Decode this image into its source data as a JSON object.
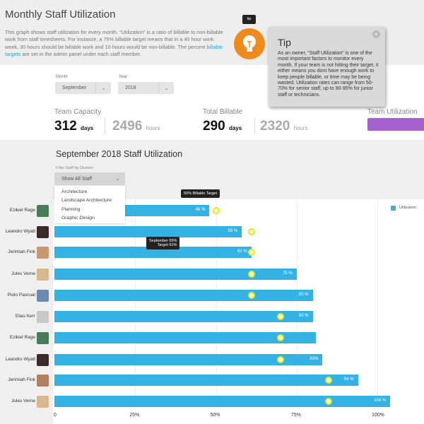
{
  "header": {
    "title": "Monthly Staff Utilization",
    "description_pre": "This graph shows staff utilization for every month. “Utilization” is a ratio of billable to non-billable work from staff timesheets. For instance, a 75% billable target means that in a 40 hour work week, 30 hours should be billable work and 10 hours would be non-billable. The percent ",
    "description_link": "billable targets",
    "description_post": " are set in the admin panel under each staff member."
  },
  "tip": {
    "badge": "tip",
    "title": "Tip",
    "body": "As an owner, “Staff Utilization” is one of the most important factors to monitor every month. If your team is not hitting their target, it either means you dont have enough work to keep people billable, or time may be being wasted. Utilization rates can range from 50-70% for senior staff, up to 90-95% for junior staff or technicians.",
    "close": "×",
    "accent": "#f08a1c"
  },
  "filters": {
    "month_label": "Month",
    "month": "September",
    "year_label": "Year",
    "year": "2018",
    "chevron": "⌄"
  },
  "stats": {
    "capacity_label": "Team Capacity",
    "capacity_days": "312",
    "days_unit": "days",
    "capacity_hours": "2496",
    "hours_unit": "hours",
    "billable_label": "Total Billable",
    "billable_days": "290",
    "billable_hours": "2320",
    "utilization_label": "Team Utilization",
    "utilization_color": "#a55fcf"
  },
  "chart_section": {
    "title": "September 2018 Staff Utilization",
    "filter_label": "Filter Staff by Division",
    "filter_value": "Show All Staff",
    "options": [
      "Architecture",
      "Landscape Architecture",
      "Planning",
      "Graphic Design"
    ],
    "tooltip_target": "50% Billable Target",
    "tooltip_hover_1": "September  65%",
    "tooltip_hover_2": "Target 61%"
  },
  "chart_data": {
    "type": "bar",
    "orientation": "horizontal",
    "categories": [
      "Ezikiel Rage",
      "Leandro Wyatt",
      "Jerimiah Fink",
      "Jules Verne",
      "Piolo Pascual",
      "Elias Kerr",
      "Ezikiel Rage",
      "Leandro Wyatt",
      "Jerimiah Fink",
      "Jules Verne"
    ],
    "series": [
      {
        "name": "Utilization",
        "values": [
          48,
          58,
          61,
          75,
          80,
          80,
          81,
          83,
          94,
          104
        ],
        "color": "#35b2e4"
      }
    ],
    "data_labels": [
      "48 %",
      "58 %",
      "61 %",
      "75 %",
      "80 %",
      "80 %",
      "",
      "83%",
      "94 %",
      "104 %"
    ],
    "targets": [
      50,
      61,
      61,
      61,
      61,
      70,
      70,
      70,
      85,
      85
    ],
    "x_ticks": [
      "0",
      "25%",
      "50%",
      "75%",
      "100%"
    ],
    "xlim": [
      0,
      110
    ],
    "grid": true,
    "legend": "top-right"
  }
}
